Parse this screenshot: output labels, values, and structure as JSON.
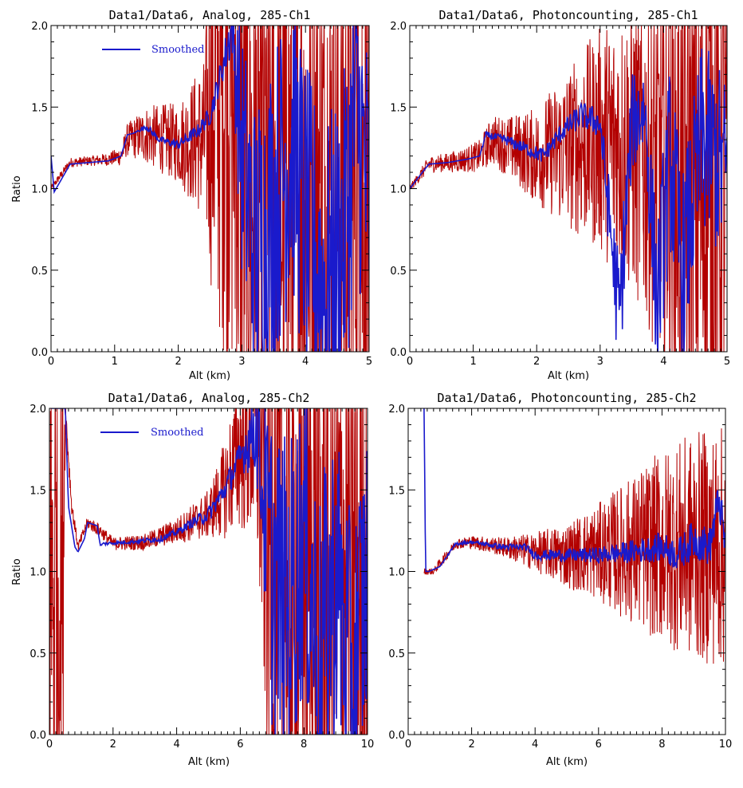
{
  "colors": {
    "raw": "#b30000",
    "smoothed": "#1a1acc",
    "axis": "#000000"
  },
  "chart_data": [
    {
      "type": "line",
      "title": "Data1/Data6, Analog, 285-Ch1",
      "xlabel": "Alt (km)",
      "ylabel": "Ratio",
      "xlim": [
        0,
        5
      ],
      "ylim": [
        0,
        2
      ],
      "xticks": [
        "0",
        "1",
        "2",
        "3",
        "4",
        "5"
      ],
      "yticks": [
        "0.0",
        "0.5",
        "1.0",
        "1.5",
        "2.0"
      ],
      "legend": {
        "label": "Smoothed",
        "placement": "top-left"
      },
      "series": [
        {
          "name": "",
          "role": "raw",
          "color": "#b30000",
          "x": [
            0,
            0.3,
            0.6,
            0.9,
            1.1,
            1.2,
            1.5,
            2.0,
            2.4,
            2.6,
            2.8,
            3.0,
            3.5,
            4.0,
            4.5,
            5.0
          ],
          "y": [
            1.0,
            1.16,
            1.17,
            1.18,
            1.2,
            1.3,
            1.33,
            1.28,
            1.3,
            1.6,
            1.9,
            1.1,
            1.0,
            1.0,
            1.0,
            1.0
          ],
          "spread": [
            0.02,
            0.03,
            0.03,
            0.04,
            0.06,
            0.1,
            0.18,
            0.25,
            0.5,
            1.5,
            2.0,
            2.0,
            2.0,
            2.0,
            2.0,
            2.0
          ]
        },
        {
          "name": "Smoothed",
          "role": "smoothed",
          "color": "#1a1acc",
          "x": [
            0,
            0.05,
            0.3,
            0.6,
            0.9,
            1.1,
            1.2,
            1.3,
            1.5,
            1.7,
            2.0,
            2.3,
            2.5,
            2.7,
            2.85,
            3.0,
            3.2,
            3.5,
            3.8,
            4.0,
            4.3,
            4.6,
            4.8,
            5.0
          ],
          "y": [
            1.2,
            0.98,
            1.15,
            1.16,
            1.17,
            1.2,
            1.33,
            1.34,
            1.38,
            1.3,
            1.27,
            1.35,
            1.45,
            1.75,
            2.0,
            1.2,
            0.6,
            0.9,
            1.3,
            0.8,
            0.4,
            0.7,
            1.5,
            0.9
          ],
          "spread": [
            0,
            0,
            0,
            0,
            0,
            0,
            0,
            0,
            0.02,
            0.02,
            0.03,
            0.04,
            0.06,
            0.1,
            0.2,
            0.8,
            1.0,
            1.0,
            1.0,
            1.0,
            1.0,
            1.0,
            1.0,
            1.0
          ]
        }
      ]
    },
    {
      "type": "line",
      "title": "Data1/Data6, Photoncounting, 285-Ch1",
      "xlabel": "Alt (km)",
      "ylabel": "",
      "xlim": [
        0,
        5
      ],
      "ylim": [
        0,
        2
      ],
      "xticks": [
        "0",
        "1",
        "2",
        "3",
        "4",
        "5"
      ],
      "yticks": [
        "0.0",
        "0.5",
        "1.0",
        "1.5",
        "2.0"
      ],
      "series": [
        {
          "name": "",
          "role": "raw",
          "color": "#b30000",
          "x": [
            0,
            0.3,
            0.6,
            0.9,
            1.1,
            1.3,
            1.6,
            2.0,
            2.5,
            3.0,
            3.5,
            4.0,
            4.5,
            5.0
          ],
          "y": [
            1.0,
            1.15,
            1.16,
            1.18,
            1.2,
            1.3,
            1.25,
            1.2,
            1.25,
            1.3,
            1.25,
            1.1,
            1.0,
            1.0
          ],
          "spread": [
            0.02,
            0.05,
            0.06,
            0.08,
            0.1,
            0.15,
            0.2,
            0.3,
            0.5,
            0.7,
            0.9,
            1.2,
            1.6,
            2.0
          ]
        },
        {
          "name": "Smoothed",
          "role": "smoothed",
          "color": "#1a1acc",
          "x": [
            0,
            0.3,
            0.6,
            0.9,
            1.1,
            1.2,
            1.5,
            1.8,
            2.1,
            2.4,
            2.7,
            3.0,
            3.3,
            3.5,
            3.7,
            3.9,
            4.1,
            4.3,
            4.6,
            5.0
          ],
          "y": [
            1.0,
            1.15,
            1.16,
            1.18,
            1.2,
            1.33,
            1.3,
            1.25,
            1.2,
            1.35,
            1.45,
            1.4,
            0.2,
            1.4,
            1.5,
            0.3,
            1.2,
            0.5,
            1.3,
            1.1
          ],
          "spread": [
            0,
            0,
            0,
            0,
            0,
            0.02,
            0.03,
            0.04,
            0.05,
            0.06,
            0.08,
            0.1,
            0.4,
            0.3,
            0.3,
            0.5,
            0.6,
            0.6,
            0.6,
            0.6
          ]
        }
      ]
    },
    {
      "type": "line",
      "title": "Data1/Data6, Analog, 285-Ch2",
      "xlabel": "Alt (km)",
      "ylabel": "Ratio",
      "xlim": [
        0,
        10
      ],
      "ylim": [
        0,
        2
      ],
      "xticks": [
        "0",
        "2",
        "4",
        "6",
        "8",
        "10"
      ],
      "yticks": [
        "0.0",
        "0.5",
        "1.0",
        "1.5",
        "2.0"
      ],
      "legend": {
        "label": "Smoothed",
        "placement": "top-left"
      },
      "series": [
        {
          "name": "",
          "role": "raw",
          "color": "#b30000",
          "x": [
            0,
            0.2,
            0.4,
            0.5,
            0.7,
            0.9,
            1.2,
            1.6,
            2.0,
            3.0,
            4.0,
            5.0,
            5.5,
            6.0,
            6.5,
            7.0,
            8.0,
            9.0,
            10.0
          ],
          "y": [
            1.0,
            1.0,
            1.0,
            2.0,
            1.4,
            1.15,
            1.3,
            1.25,
            1.17,
            1.18,
            1.25,
            1.35,
            1.5,
            1.75,
            1.9,
            1.1,
            1.0,
            1.0,
            1.0
          ],
          "spread": [
            2.0,
            2.0,
            2.0,
            0.1,
            0.05,
            0.03,
            0.04,
            0.04,
            0.04,
            0.05,
            0.08,
            0.15,
            0.3,
            0.5,
            0.8,
            2.0,
            2.0,
            2.0,
            2.0
          ]
        },
        {
          "name": "Smoothed",
          "role": "smoothed",
          "color": "#1a1acc",
          "x": [
            0.05,
            0.5,
            0.6,
            0.8,
            0.9,
            1.1,
            1.2,
            1.5,
            1.6,
            1.7,
            2.5,
            3.5,
            4.0,
            4.5,
            5.0,
            5.5,
            6.0,
            6.5,
            7.0,
            7.5,
            8.0,
            8.5,
            9.0,
            9.5,
            10.0
          ],
          "y": [
            2.0,
            2.0,
            1.4,
            1.15,
            1.12,
            1.2,
            1.3,
            1.28,
            1.16,
            1.17,
            1.18,
            1.2,
            1.24,
            1.3,
            1.35,
            1.5,
            1.7,
            1.9,
            1.0,
            0.8,
            1.2,
            0.5,
            1.0,
            0.3,
            1.0
          ],
          "spread": [
            0,
            0,
            0,
            0,
            0,
            0,
            0,
            0,
            0,
            0.01,
            0.01,
            0.02,
            0.02,
            0.03,
            0.05,
            0.07,
            0.1,
            0.3,
            1.0,
            1.0,
            1.0,
            1.0,
            1.0,
            1.0,
            1.0
          ]
        }
      ]
    },
    {
      "type": "line",
      "title": "Data1/Data6, Photoncounting, 285-Ch2",
      "xlabel": "Alt (km)",
      "ylabel": "",
      "xlim": [
        0,
        10
      ],
      "ylim": [
        0,
        2
      ],
      "xticks": [
        "0",
        "2",
        "4",
        "6",
        "8",
        "10"
      ],
      "yticks": [
        "0.0",
        "0.5",
        "1.0",
        "1.5",
        "2.0"
      ],
      "series": [
        {
          "name": "",
          "role": "raw",
          "color": "#b30000",
          "x": [
            0.5,
            0.6,
            0.8,
            1.0,
            1.5,
            2.0,
            3.0,
            4.0,
            5.0,
            6.0,
            7.0,
            8.0,
            9.0,
            10.0
          ],
          "y": [
            1.0,
            1.0,
            1.0,
            1.05,
            1.17,
            1.18,
            1.15,
            1.12,
            1.1,
            1.12,
            1.13,
            1.15,
            1.15,
            1.15
          ],
          "spread": [
            0.02,
            0.02,
            0.02,
            0.03,
            0.03,
            0.04,
            0.06,
            0.12,
            0.2,
            0.3,
            0.45,
            0.6,
            0.7,
            0.75
          ]
        },
        {
          "name": "Smoothed",
          "role": "smoothed",
          "color": "#1a1acc",
          "x": [
            0.5,
            0.55,
            0.65,
            1.0,
            1.5,
            2.0,
            3.0,
            3.7,
            4.0,
            5.0,
            6.0,
            7.0,
            8.0,
            8.5,
            9.0,
            9.5,
            9.8,
            10.0
          ],
          "y": [
            2.0,
            1.0,
            1.0,
            1.03,
            1.17,
            1.18,
            1.15,
            1.15,
            1.1,
            1.1,
            1.1,
            1.12,
            1.15,
            1.1,
            1.2,
            1.15,
            1.45,
            1.15
          ],
          "spread": [
            0,
            0,
            0,
            0,
            0.01,
            0.01,
            0.02,
            0.02,
            0.03,
            0.04,
            0.05,
            0.07,
            0.09,
            0.1,
            0.12,
            0.12,
            0.12,
            0.12
          ]
        }
      ]
    }
  ]
}
